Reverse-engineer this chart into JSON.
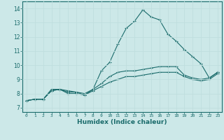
{
  "xlabel": "Humidex (Indice chaleur)",
  "ylabel": "",
  "bg_color": "#cce8e8",
  "grid_color": "#c0dede",
  "line_color": "#1a6b6b",
  "xlim": [
    -0.5,
    23.5
  ],
  "ylim": [
    6.7,
    14.5
  ],
  "xticks": [
    0,
    1,
    2,
    3,
    4,
    5,
    6,
    7,
    8,
    9,
    10,
    11,
    12,
    13,
    14,
    15,
    16,
    17,
    18,
    19,
    20,
    21,
    22,
    23
  ],
  "yticks": [
    7,
    8,
    9,
    10,
    11,
    12,
    13,
    14
  ],
  "line1_x": [
    0,
    1,
    2,
    3,
    4,
    5,
    6,
    7,
    8,
    9,
    10,
    11,
    12,
    13,
    14,
    15,
    16,
    17,
    18,
    19,
    20,
    21,
    22,
    23
  ],
  "line1_y": [
    7.5,
    7.6,
    7.6,
    8.3,
    8.3,
    8.2,
    8.1,
    8.0,
    8.3,
    9.6,
    10.2,
    11.5,
    12.6,
    13.1,
    13.9,
    13.4,
    13.2,
    12.2,
    11.7,
    11.1,
    10.6,
    10.1,
    9.1,
    9.5
  ],
  "line2_x": [
    0,
    1,
    2,
    3,
    4,
    5,
    6,
    7,
    8,
    9,
    10,
    11,
    12,
    13,
    14,
    15,
    16,
    17,
    18,
    19,
    20,
    21,
    22,
    23
  ],
  "line2_y": [
    7.5,
    7.6,
    7.6,
    8.2,
    8.3,
    8.1,
    8.1,
    7.9,
    8.3,
    8.7,
    9.2,
    9.5,
    9.6,
    9.6,
    9.7,
    9.8,
    9.9,
    9.9,
    9.9,
    9.3,
    9.1,
    9.0,
    9.1,
    9.5
  ],
  "line3_x": [
    0,
    1,
    2,
    3,
    4,
    5,
    6,
    7,
    8,
    9,
    10,
    11,
    12,
    13,
    14,
    15,
    16,
    17,
    18,
    19,
    20,
    21,
    22,
    23
  ],
  "line3_y": [
    7.5,
    7.6,
    7.6,
    8.2,
    8.3,
    8.0,
    8.0,
    7.9,
    8.2,
    8.5,
    8.8,
    9.0,
    9.2,
    9.2,
    9.3,
    9.4,
    9.5,
    9.5,
    9.5,
    9.2,
    9.0,
    8.9,
    9.0,
    9.4
  ]
}
